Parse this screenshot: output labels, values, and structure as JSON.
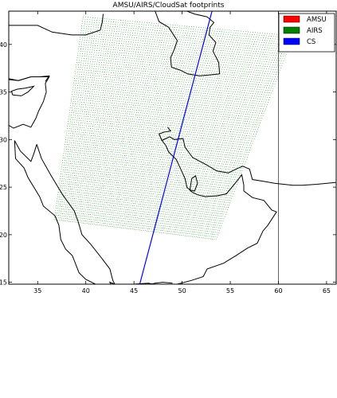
{
  "chart_data": {
    "type": "map",
    "title": "AMSU/AIRS/CloudSat footprints",
    "xlim": [
      32,
      66
    ],
    "ylim": [
      14.8,
      43.5
    ],
    "x_ticks": [
      35,
      40,
      45,
      50,
      55,
      60,
      65
    ],
    "y_ticks": [
      15,
      20,
      25,
      30,
      35,
      40
    ],
    "x_tick_labels": [
      "35",
      "40",
      "45",
      "50",
      "55",
      "60",
      "65"
    ],
    "y_tick_labels": [
      "15",
      "20",
      "25",
      "30",
      "35",
      "40"
    ],
    "legend_position": "top-right",
    "series": [
      {
        "name": "AMSU",
        "color": "#ff0000",
        "type": "footprints",
        "points": []
      },
      {
        "name": "AIRS",
        "color": "#008000",
        "type": "footprint-swath",
        "swath_corners": {
          "top_left": [
            39.7,
            42.9
          ],
          "top_right": [
            61.5,
            40.9
          ],
          "bottom_right": [
            53.5,
            19.5
          ],
          "bottom_left": [
            36.7,
            21.6
          ]
        },
        "scan_lines": 90,
        "footprints_per_line": 90
      },
      {
        "name": "CS",
        "color": "#0000ff",
        "type": "track",
        "points": [
          [
            45.6,
            14.8
          ],
          [
            53.1,
            43.5
          ]
        ]
      }
    ],
    "vertical_line_x": 60,
    "coastlines": [
      {
        "name": "levant-egypt",
        "points": [
          [
            32,
            31.5
          ],
          [
            32.5,
            31.2
          ],
          [
            33.5,
            31.6
          ],
          [
            34.3,
            31.3
          ],
          [
            34.8,
            32.2
          ],
          [
            35.1,
            33.0
          ],
          [
            35.6,
            34.0
          ],
          [
            35.9,
            35.0
          ],
          [
            35.8,
            35.9
          ],
          [
            36.2,
            36.6
          ],
          [
            35.2,
            36.6
          ],
          [
            34.3,
            36.6
          ],
          [
            33.0,
            36.2
          ],
          [
            32.0,
            36.3
          ]
        ]
      },
      {
        "name": "anatolia-south",
        "points": [
          [
            32.0,
            36.4
          ],
          [
            33.0,
            36.2
          ],
          [
            34.3,
            36.6
          ],
          [
            35.2,
            36.6
          ],
          [
            36.2,
            36.7
          ],
          [
            35.8,
            36.1
          ]
        ]
      },
      {
        "name": "cyprus",
        "points": [
          [
            32.4,
            34.7
          ],
          [
            33.3,
            34.6
          ],
          [
            34.0,
            35.0
          ],
          [
            34.6,
            35.6
          ],
          [
            33.7,
            35.4
          ],
          [
            32.9,
            35.3
          ],
          [
            32.3,
            35.1
          ],
          [
            32.4,
            34.7
          ]
        ]
      },
      {
        "name": "anatolia-north",
        "points": [
          [
            32.0,
            42.0
          ],
          [
            33.3,
            42.0
          ],
          [
            35.0,
            42.0
          ],
          [
            36.5,
            41.3
          ],
          [
            38.5,
            41.0
          ],
          [
            40.0,
            41.0
          ],
          [
            41.5,
            41.5
          ]
        ]
      },
      {
        "name": "black-sea-east",
        "points": [
          [
            41.5,
            41.5
          ],
          [
            41.7,
            42.3
          ],
          [
            41.8,
            43.2
          ]
        ]
      },
      {
        "name": "red-sea-west",
        "points": [
          [
            32.6,
            29.9
          ],
          [
            32.7,
            28.0
          ],
          [
            33.6,
            27.0
          ],
          [
            34.0,
            26.0
          ],
          [
            35.2,
            24.0
          ],
          [
            35.6,
            23.0
          ],
          [
            36.8,
            22.0
          ],
          [
            37.2,
            21.0
          ],
          [
            37.4,
            19.5
          ],
          [
            37.9,
            18.5
          ],
          [
            38.6,
            17.8
          ],
          [
            39.3,
            16.0
          ],
          [
            40.0,
            15.3
          ],
          [
            41.0,
            14.8
          ]
        ]
      },
      {
        "name": "sinai-gulf-aqaba",
        "points": [
          [
            32.6,
            29.9
          ],
          [
            33.2,
            28.8
          ],
          [
            34.3,
            27.7
          ],
          [
            34.6,
            28.5
          ],
          [
            34.9,
            29.5
          ]
        ]
      },
      {
        "name": "red-sea-east",
        "points": [
          [
            34.9,
            29.5
          ],
          [
            35.4,
            28.0
          ],
          [
            36.4,
            26.2
          ],
          [
            37.6,
            24.2
          ],
          [
            38.8,
            22.5
          ],
          [
            39.2,
            21.4
          ],
          [
            39.6,
            20.0
          ],
          [
            40.5,
            19.0
          ],
          [
            41.6,
            17.6
          ],
          [
            42.5,
            16.4
          ],
          [
            42.8,
            15.2
          ],
          [
            43.0,
            14.8
          ]
        ]
      },
      {
        "name": "caspian-west",
        "points": [
          [
            47.2,
            43.5
          ],
          [
            47.6,
            42.4
          ],
          [
            48.6,
            41.8
          ],
          [
            49.5,
            40.4
          ],
          [
            49.2,
            39.5
          ],
          [
            48.8,
            38.6
          ],
          [
            48.9,
            37.6
          ],
          [
            49.8,
            37.3
          ],
          [
            50.6,
            36.9
          ],
          [
            51.8,
            36.7
          ],
          [
            53.9,
            36.9
          ]
        ]
      },
      {
        "name": "caspian-east",
        "points": [
          [
            53.9,
            36.9
          ],
          [
            53.8,
            38.1
          ],
          [
            53.2,
            39.3
          ],
          [
            53.5,
            40.2
          ],
          [
            52.8,
            41.0
          ],
          [
            52.9,
            41.8
          ],
          [
            53.3,
            42.3
          ],
          [
            52.6,
            42.9
          ],
          [
            51.3,
            43.2
          ],
          [
            50.5,
            43.5
          ]
        ]
      },
      {
        "name": "gulf-north",
        "points": [
          [
            47.9,
            29.9
          ],
          [
            48.3,
            29.4
          ],
          [
            48.6,
            28.7
          ],
          [
            49.4,
            27.9
          ],
          [
            49.9,
            26.8
          ],
          [
            50.3,
            25.9
          ],
          [
            50.5,
            25.0
          ],
          [
            51.0,
            24.5
          ],
          [
            51.6,
            24.2
          ],
          [
            52.4,
            24.0
          ],
          [
            53.7,
            24.1
          ],
          [
            54.6,
            24.3
          ],
          [
            55.5,
            25.4
          ],
          [
            56.2,
            26.3
          ],
          [
            56.4,
            25.2
          ],
          [
            56.4,
            24.6
          ],
          [
            57.3,
            23.9
          ],
          [
            58.5,
            23.6
          ],
          [
            59.3,
            22.6
          ],
          [
            59.8,
            22.4
          ],
          [
            58.9,
            21.0
          ],
          [
            58.4,
            20.4
          ],
          [
            57.8,
            19.1
          ],
          [
            56.8,
            18.6
          ],
          [
            55.6,
            17.8
          ],
          [
            54.3,
            17.0
          ],
          [
            52.6,
            16.4
          ],
          [
            52.2,
            15.6
          ],
          [
            51.0,
            15.2
          ],
          [
            49.5,
            14.8
          ]
        ]
      },
      {
        "name": "qatar",
        "points": [
          [
            50.8,
            24.7
          ],
          [
            51.3,
            24.6
          ],
          [
            51.6,
            25.4
          ],
          [
            51.4,
            26.2
          ],
          [
            51.0,
            25.9
          ],
          [
            50.8,
            24.7
          ]
        ]
      },
      {
        "name": "iran-coast",
        "points": [
          [
            47.9,
            29.9
          ],
          [
            48.7,
            30.3
          ],
          [
            49.2,
            30.0
          ],
          [
            50.1,
            30.1
          ],
          [
            50.3,
            29.2
          ],
          [
            51.1,
            28.1
          ],
          [
            51.5,
            27.9
          ],
          [
            52.6,
            27.3
          ],
          [
            53.6,
            26.7
          ],
          [
            54.8,
            26.5
          ],
          [
            55.6,
            26.9
          ],
          [
            56.3,
            27.2
          ],
          [
            57.0,
            26.9
          ],
          [
            57.3,
            25.8
          ],
          [
            58.5,
            25.6
          ],
          [
            59.6,
            25.4
          ],
          [
            61.5,
            25.2
          ],
          [
            62.5,
            25.2
          ],
          [
            64.0,
            25.3
          ],
          [
            66.0,
            25.5
          ]
        ]
      },
      {
        "name": "shatt-al-arab",
        "points": [
          [
            47.9,
            29.9
          ],
          [
            47.6,
            30.6
          ],
          [
            48.2,
            30.8
          ],
          [
            48.8,
            30.9
          ],
          [
            48.5,
            31.3
          ]
        ]
      },
      {
        "name": "africa-horn",
        "points": [
          [
            42.6,
            14.8
          ],
          [
            42.5,
            15.0
          ],
          [
            43.0,
            14.8
          ]
        ]
      },
      {
        "name": "arabian-sea-south",
        "points": [
          [
            45.0,
            14.8
          ],
          [
            46.5,
            14.9
          ],
          [
            47.0,
            14.8
          ]
        ]
      },
      {
        "name": "gulf-bottom-left",
        "points": [
          [
            46.8,
            14.8
          ],
          [
            47.2,
            14.9
          ],
          [
            48.0,
            15.0
          ],
          [
            49.0,
            14.9
          ]
        ]
      }
    ]
  }
}
